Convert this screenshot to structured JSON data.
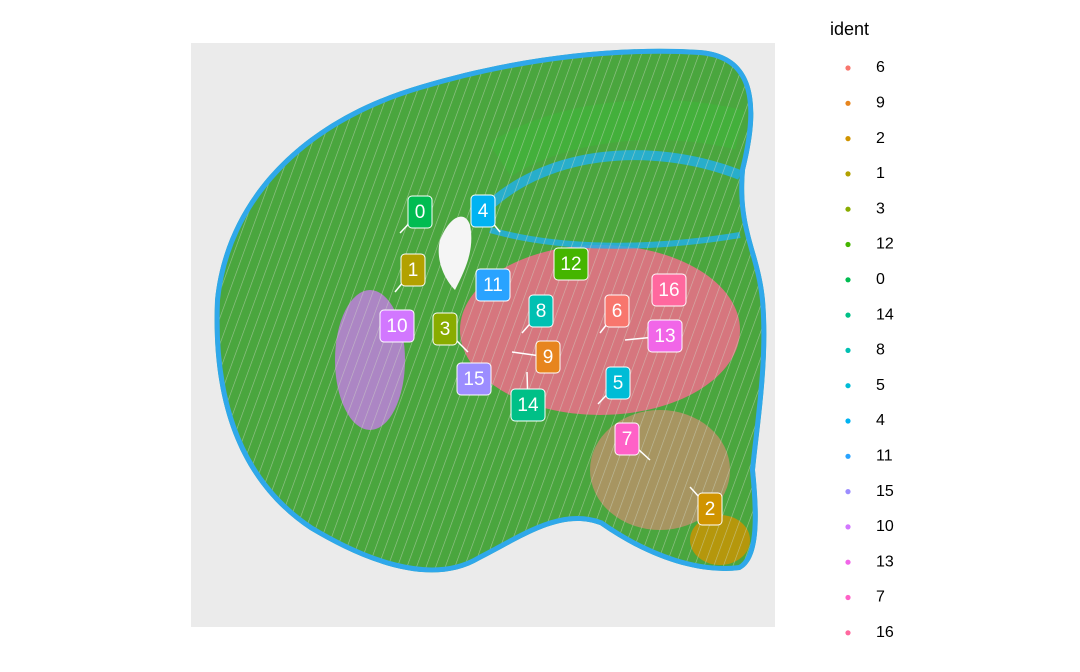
{
  "chart_data": {
    "type": "spatial",
    "legend_title": "ident",
    "series": [
      {
        "name": "6",
        "color": "#F8766D"
      },
      {
        "name": "9",
        "color": "#E7851E"
      },
      {
        "name": "2",
        "color": "#D09400"
      },
      {
        "name": "1",
        "color": "#B2A100"
      },
      {
        "name": "3",
        "color": "#89AC00"
      },
      {
        "name": "12",
        "color": "#45B500"
      },
      {
        "name": "0",
        "color": "#00BC51"
      },
      {
        "name": "14",
        "color": "#00C087"
      },
      {
        "name": "8",
        "color": "#00C0B2"
      },
      {
        "name": "5",
        "color": "#00BCD6"
      },
      {
        "name": "4",
        "color": "#00B3F2"
      },
      {
        "name": "11",
        "color": "#29A3FF"
      },
      {
        "name": "15",
        "color": "#9C8DFF"
      },
      {
        "name": "10",
        "color": "#D277FF"
      },
      {
        "name": "13",
        "color": "#F166E8"
      },
      {
        "name": "7",
        "color": "#FF61C7"
      },
      {
        "name": "16",
        "color": "#FF689E"
      }
    ]
  }
}
